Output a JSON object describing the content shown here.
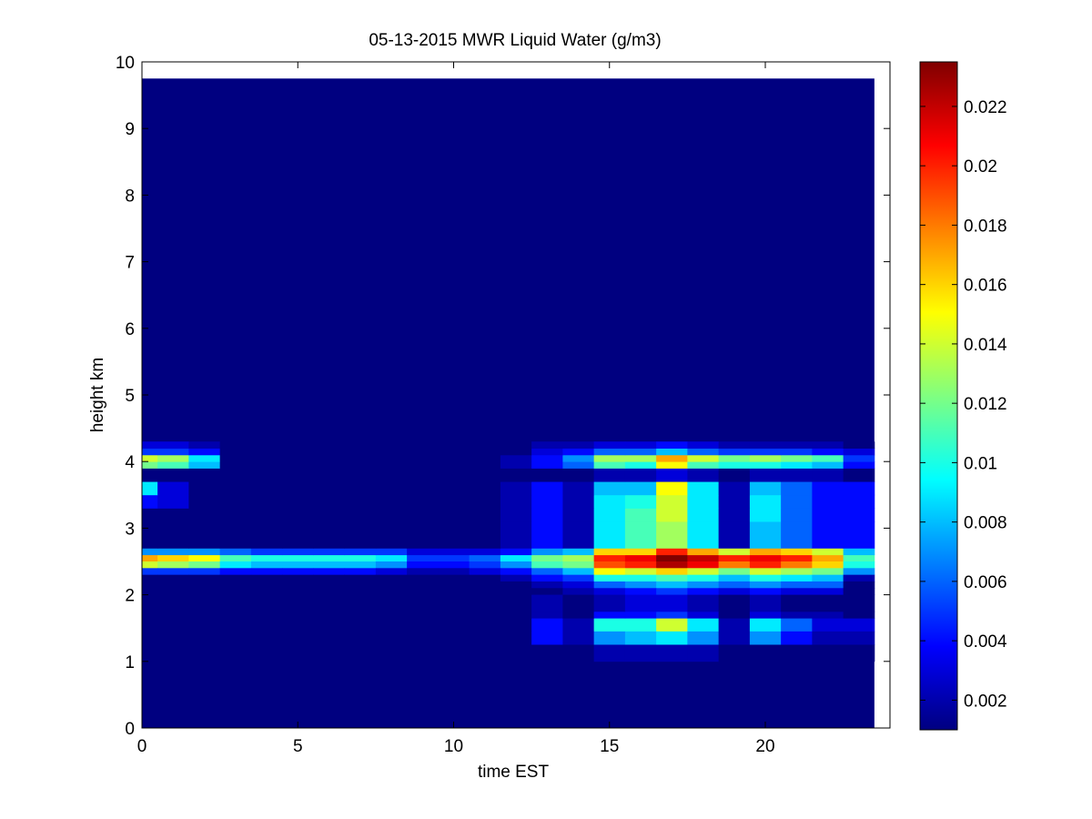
{
  "chart_data": {
    "type": "heatmap",
    "title": "05-13-2015 MWR Liquid Water (g/m3)",
    "xlabel": "time EST",
    "ylabel": "height km",
    "xlim": [
      0,
      24
    ],
    "ylim": [
      0,
      10
    ],
    "xticks": [
      0,
      5,
      10,
      15,
      20
    ],
    "yticks": [
      0,
      1,
      2,
      3,
      4,
      5,
      6,
      7,
      8,
      9,
      10
    ],
    "colormap": "jet",
    "clim": [
      0.001,
      0.0235
    ],
    "colorbar_ticks": [
      0.002,
      0.004,
      0.006,
      0.008,
      0.01,
      0.012,
      0.014,
      0.016,
      0.018,
      0.02,
      0.022
    ],
    "colorbar_labels": [
      "0.002",
      "0.004",
      "0.006",
      "0.008",
      "0.01",
      "0.012",
      "0.014",
      "0.016",
      "0.018",
      "0.02",
      "0.022"
    ],
    "time_edges": [
      0,
      0.5,
      1.5,
      2.5,
      3.5,
      4.5,
      5.5,
      6.5,
      7.5,
      8.5,
      9.5,
      10.5,
      11.5,
      12.5,
      13.5,
      14.5,
      15.5,
      16.5,
      17.5,
      18.5,
      19.5,
      20.5,
      21.5,
      22.5,
      23.5
    ],
    "height_edges": [
      0,
      1.0,
      1.25,
      1.35,
      1.45,
      1.55,
      1.65,
      1.75,
      2.0,
      2.1,
      2.2,
      2.3,
      2.4,
      2.5,
      2.6,
      2.7,
      3.1,
      3.3,
      3.5,
      3.7,
      3.9,
      4.0,
      4.1,
      4.2,
      4.3,
      9.75
    ],
    "background_value": 0.001,
    "rows": [
      {
        "h": [
          2.5,
          2.6
        ],
        "v": [
          0.017,
          0.016,
          0.015,
          0.011,
          0.01,
          0.01,
          0.01,
          0.01,
          0.009,
          0.005,
          0.005,
          0.006,
          0.009,
          0.012,
          0.013,
          0.02,
          0.021,
          0.0235,
          0.022,
          0.02,
          0.021,
          0.02,
          0.017,
          0.011
        ]
      },
      {
        "h": [
          2.4,
          2.5
        ],
        "v": [
          0.014,
          0.013,
          0.012,
          0.009,
          0.008,
          0.008,
          0.008,
          0.008,
          0.007,
          0.004,
          0.004,
          0.005,
          0.007,
          0.011,
          0.012,
          0.019,
          0.02,
          0.0225,
          0.021,
          0.018,
          0.02,
          0.018,
          0.016,
          0.01
        ]
      },
      {
        "h": [
          2.6,
          2.7
        ],
        "v": [
          0.007,
          0.007,
          0.007,
          0.006,
          0.005,
          0.005,
          0.005,
          0.005,
          0.005,
          0.003,
          0.003,
          0.003,
          0.004,
          0.007,
          0.008,
          0.016,
          0.016,
          0.02,
          0.017,
          0.014,
          0.017,
          0.016,
          0.014,
          0.008
        ]
      },
      {
        "h": [
          2.3,
          2.4
        ],
        "v": [
          0.005,
          0.005,
          0.005,
          0.004,
          0.004,
          0.004,
          0.004,
          0.004,
          0.003,
          0.002,
          0.002,
          0.003,
          0.004,
          0.006,
          0.008,
          0.015,
          0.014,
          0.016,
          0.014,
          0.012,
          0.014,
          0.013,
          0.012,
          0.007
        ]
      },
      {
        "h": [
          2.2,
          2.3
        ],
        "v": [
          0.001,
          0.001,
          0.001,
          0.001,
          0.001,
          0.001,
          0.001,
          0.001,
          0.001,
          0.001,
          0.001,
          0.001,
          0.002,
          0.004,
          0.005,
          0.01,
          0.01,
          0.011,
          0.01,
          0.008,
          0.01,
          0.009,
          0.008,
          0.002
        ]
      },
      {
        "h": [
          2.1,
          2.2
        ],
        "v": [
          0.001,
          0.001,
          0.001,
          0.001,
          0.001,
          0.001,
          0.001,
          0.001,
          0.001,
          0.001,
          0.001,
          0.001,
          0.001,
          0.002,
          0.003,
          0.006,
          0.007,
          0.008,
          0.007,
          0.006,
          0.007,
          0.006,
          0.006,
          0.001
        ]
      },
      {
        "h": [
          2.0,
          2.1
        ],
        "v": [
          0.001,
          0.001,
          0.001,
          0.001,
          0.001,
          0.001,
          0.001,
          0.001,
          0.001,
          0.001,
          0.001,
          0.001,
          0.001,
          0.001,
          0.002,
          0.003,
          0.004,
          0.005,
          0.004,
          0.003,
          0.004,
          0.003,
          0.003,
          0.001
        ]
      },
      {
        "h": [
          2.7,
          3.1
        ],
        "v": [
          0.001,
          0.001,
          0.001,
          0.001,
          0.001,
          0.001,
          0.001,
          0.001,
          0.001,
          0.001,
          0.001,
          0.001,
          0.002,
          0.004,
          0.002,
          0.009,
          0.011,
          0.013,
          0.009,
          0.002,
          0.008,
          0.006,
          0.004,
          0.004
        ]
      },
      {
        "h": [
          3.1,
          3.3
        ],
        "v": [
          0.001,
          0.001,
          0.001,
          0.001,
          0.001,
          0.001,
          0.001,
          0.001,
          0.001,
          0.001,
          0.001,
          0.001,
          0.002,
          0.004,
          0.002,
          0.009,
          0.011,
          0.014,
          0.009,
          0.002,
          0.009,
          0.006,
          0.004,
          0.004
        ]
      },
      {
        "h": [
          3.3,
          3.5
        ],
        "v": [
          0.004,
          0.003,
          0.001,
          0.001,
          0.001,
          0.001,
          0.001,
          0.001,
          0.001,
          0.001,
          0.001,
          0.001,
          0.002,
          0.004,
          0.002,
          0.009,
          0.01,
          0.014,
          0.009,
          0.002,
          0.009,
          0.006,
          0.004,
          0.004
        ]
      },
      {
        "h": [
          3.5,
          3.7
        ],
        "v": [
          0.009,
          0.003,
          0.001,
          0.001,
          0.001,
          0.001,
          0.001,
          0.001,
          0.001,
          0.001,
          0.001,
          0.001,
          0.002,
          0.004,
          0.002,
          0.008,
          0.008,
          0.015,
          0.009,
          0.002,
          0.008,
          0.006,
          0.004,
          0.004
        ]
      },
      {
        "h": [
          3.7,
          3.9
        ],
        "v": [
          0.001,
          0.001,
          0.001,
          0.001,
          0.001,
          0.001,
          0.001,
          0.001,
          0.001,
          0.001,
          0.001,
          0.001,
          0.001,
          0.001,
          0.001,
          0.002,
          0.002,
          0.003,
          0.002,
          0.001,
          0.002,
          0.002,
          0.002,
          0.001
        ]
      },
      {
        "h": [
          3.9,
          4.0
        ],
        "v": [
          0.012,
          0.011,
          0.008,
          0.001,
          0.001,
          0.001,
          0.001,
          0.001,
          0.001,
          0.001,
          0.001,
          0.001,
          0.002,
          0.004,
          0.006,
          0.011,
          0.01,
          0.015,
          0.011,
          0.01,
          0.01,
          0.009,
          0.008,
          0.004
        ]
      },
      {
        "h": [
          4.0,
          4.1
        ],
        "v": [
          0.014,
          0.013,
          0.009,
          0.001,
          0.001,
          0.001,
          0.001,
          0.001,
          0.001,
          0.001,
          0.001,
          0.001,
          0.002,
          0.004,
          0.007,
          0.013,
          0.013,
          0.017,
          0.014,
          0.012,
          0.013,
          0.012,
          0.011,
          0.005
        ]
      },
      {
        "h": [
          4.1,
          4.2
        ],
        "v": [
          0.005,
          0.005,
          0.004,
          0.001,
          0.001,
          0.001,
          0.001,
          0.001,
          0.001,
          0.001,
          0.001,
          0.001,
          0.001,
          0.003,
          0.004,
          0.006,
          0.006,
          0.008,
          0.006,
          0.005,
          0.005,
          0.005,
          0.004,
          0.003
        ]
      },
      {
        "h": [
          4.2,
          4.3
        ],
        "v": [
          0.003,
          0.003,
          0.002,
          0.001,
          0.001,
          0.001,
          0.001,
          0.001,
          0.001,
          0.001,
          0.001,
          0.001,
          0.001,
          0.002,
          0.002,
          0.003,
          0.003,
          0.004,
          0.003,
          0.002,
          0.002,
          0.002,
          0.002,
          0.001
        ]
      },
      {
        "h": [
          1.45,
          1.65
        ],
        "v": [
          0.001,
          0.001,
          0.001,
          0.001,
          0.001,
          0.001,
          0.001,
          0.001,
          0.001,
          0.001,
          0.001,
          0.001,
          0.001,
          0.004,
          0.002,
          0.01,
          0.01,
          0.014,
          0.009,
          0.002,
          0.009,
          0.006,
          0.003,
          0.003
        ]
      },
      {
        "h": [
          1.25,
          1.45
        ],
        "v": [
          0.001,
          0.001,
          0.001,
          0.001,
          0.001,
          0.001,
          0.001,
          0.001,
          0.001,
          0.001,
          0.001,
          0.001,
          0.001,
          0.004,
          0.002,
          0.007,
          0.008,
          0.009,
          0.007,
          0.002,
          0.007,
          0.004,
          0.002,
          0.002
        ]
      },
      {
        "h": [
          1.65,
          1.75
        ],
        "v": [
          0.001,
          0.001,
          0.001,
          0.001,
          0.001,
          0.001,
          0.001,
          0.001,
          0.001,
          0.001,
          0.001,
          0.001,
          0.001,
          0.002,
          0.001,
          0.004,
          0.004,
          0.005,
          0.003,
          0.001,
          0.003,
          0.002,
          0.002,
          0.001
        ]
      },
      {
        "h": [
          1.75,
          2.0
        ],
        "v": [
          0.001,
          0.001,
          0.001,
          0.001,
          0.001,
          0.001,
          0.001,
          0.001,
          0.001,
          0.001,
          0.001,
          0.001,
          0.001,
          0.002,
          0.001,
          0.002,
          0.003,
          0.003,
          0.002,
          0.001,
          0.002,
          0.001,
          0.001,
          0.001
        ]
      },
      {
        "h": [
          1.0,
          1.25
        ],
        "v": [
          0.001,
          0.001,
          0.001,
          0.001,
          0.001,
          0.001,
          0.001,
          0.001,
          0.001,
          0.001,
          0.001,
          0.001,
          0.001,
          0.001,
          0.001,
          0.002,
          0.002,
          0.002,
          0.002,
          0.001,
          0.001,
          0.001,
          0.001,
          0.001
        ]
      }
    ]
  }
}
